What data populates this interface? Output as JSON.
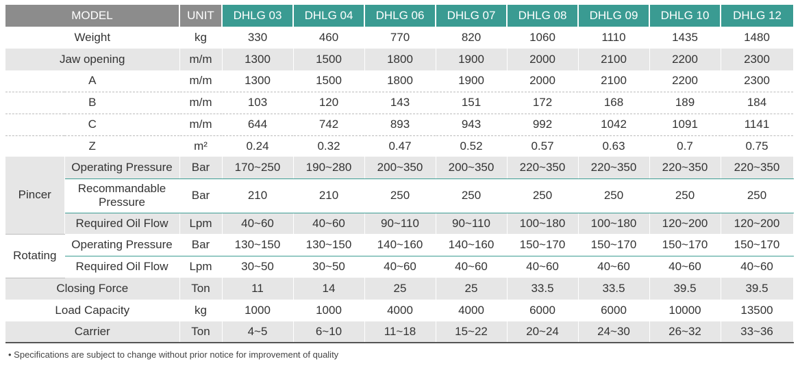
{
  "header": {
    "model": "MODEL",
    "unit": "UNIT",
    "models": [
      "DHLG 03",
      "DHLG 04",
      "DHLG 06",
      "DHLG 07",
      "DHLG 08",
      "DHLG 09",
      "DHLG 10",
      "DHLG 12"
    ]
  },
  "rows": {
    "weight": {
      "label": "Weight",
      "unit": "kg",
      "values": [
        "330",
        "460",
        "770",
        "820",
        "1060",
        "1110",
        "1435",
        "1480"
      ]
    },
    "jaw": {
      "label": "Jaw opening",
      "unit": "m/m",
      "values": [
        "1300",
        "1500",
        "1800",
        "1900",
        "2000",
        "2100",
        "2200",
        "2300"
      ]
    },
    "a": {
      "label": "A",
      "unit": "m/m",
      "values": [
        "1300",
        "1500",
        "1800",
        "1900",
        "2000",
        "2100",
        "2200",
        "2300"
      ]
    },
    "b": {
      "label": "B",
      "unit": "m/m",
      "values": [
        "103",
        "120",
        "143",
        "151",
        "172",
        "168",
        "189",
        "184"
      ]
    },
    "c": {
      "label": "C",
      "unit": "m/m",
      "values": [
        "644",
        "742",
        "893",
        "943",
        "992",
        "1042",
        "1091",
        "1141"
      ]
    },
    "z": {
      "label": "Z",
      "unit": "m²",
      "values": [
        "0.24",
        "0.32",
        "0.47",
        "0.52",
        "0.57",
        "0.63",
        "0.7",
        "0.75"
      ]
    },
    "pincer": {
      "label": "Pincer",
      "op": {
        "label": "Operating Pressure",
        "unit": "Bar",
        "values": [
          "170~250",
          "190~280",
          "200~350",
          "200~350",
          "220~350",
          "220~350",
          "220~350",
          "220~350"
        ]
      },
      "rec": {
        "label1": "Recommandable",
        "label2": "Pressure",
        "unit": "Bar",
        "values": [
          "210",
          "210",
          "250",
          "250",
          "250",
          "250",
          "250",
          "250"
        ]
      },
      "oil": {
        "label": "Required Oil Flow",
        "unit": "Lpm",
        "values": [
          "40~60",
          "40~60",
          "90~110",
          "90~110",
          "100~180",
          "100~180",
          "120~200",
          "120~200"
        ]
      }
    },
    "rotating": {
      "label": "Rotating",
      "op": {
        "label": "Operating Pressure",
        "unit": "Bar",
        "values": [
          "130~150",
          "130~150",
          "140~160",
          "140~160",
          "150~170",
          "150~170",
          "150~170",
          "150~170"
        ]
      },
      "oil": {
        "label": "Required Oil Flow",
        "unit": "Lpm",
        "values": [
          "30~50",
          "30~50",
          "40~60",
          "40~60",
          "40~60",
          "40~60",
          "40~60",
          "40~60"
        ]
      }
    },
    "closing": {
      "label": "Closing Force",
      "unit": "Ton",
      "values": [
        "11",
        "14",
        "25",
        "25",
        "33.5",
        "33.5",
        "39.5",
        "39.5"
      ]
    },
    "load": {
      "label": "Load Capacity",
      "unit": "kg",
      "values": [
        "1000",
        "1000",
        "4000",
        "4000",
        "6000",
        "6000",
        "10000",
        "13500"
      ]
    },
    "carrier": {
      "label": "Carrier",
      "unit": "Ton",
      "values": [
        "4~5",
        "6~10",
        "11~18",
        "15~22",
        "20~24",
        "24~30",
        "26~32",
        "33~36"
      ]
    }
  },
  "note": "• Specifications are subject to change without prior notice for improvement of quality",
  "colors": {
    "header_gray": "#8c8c8c",
    "header_teal": "#3a9b92",
    "row_gray": "#e6e6e6"
  }
}
